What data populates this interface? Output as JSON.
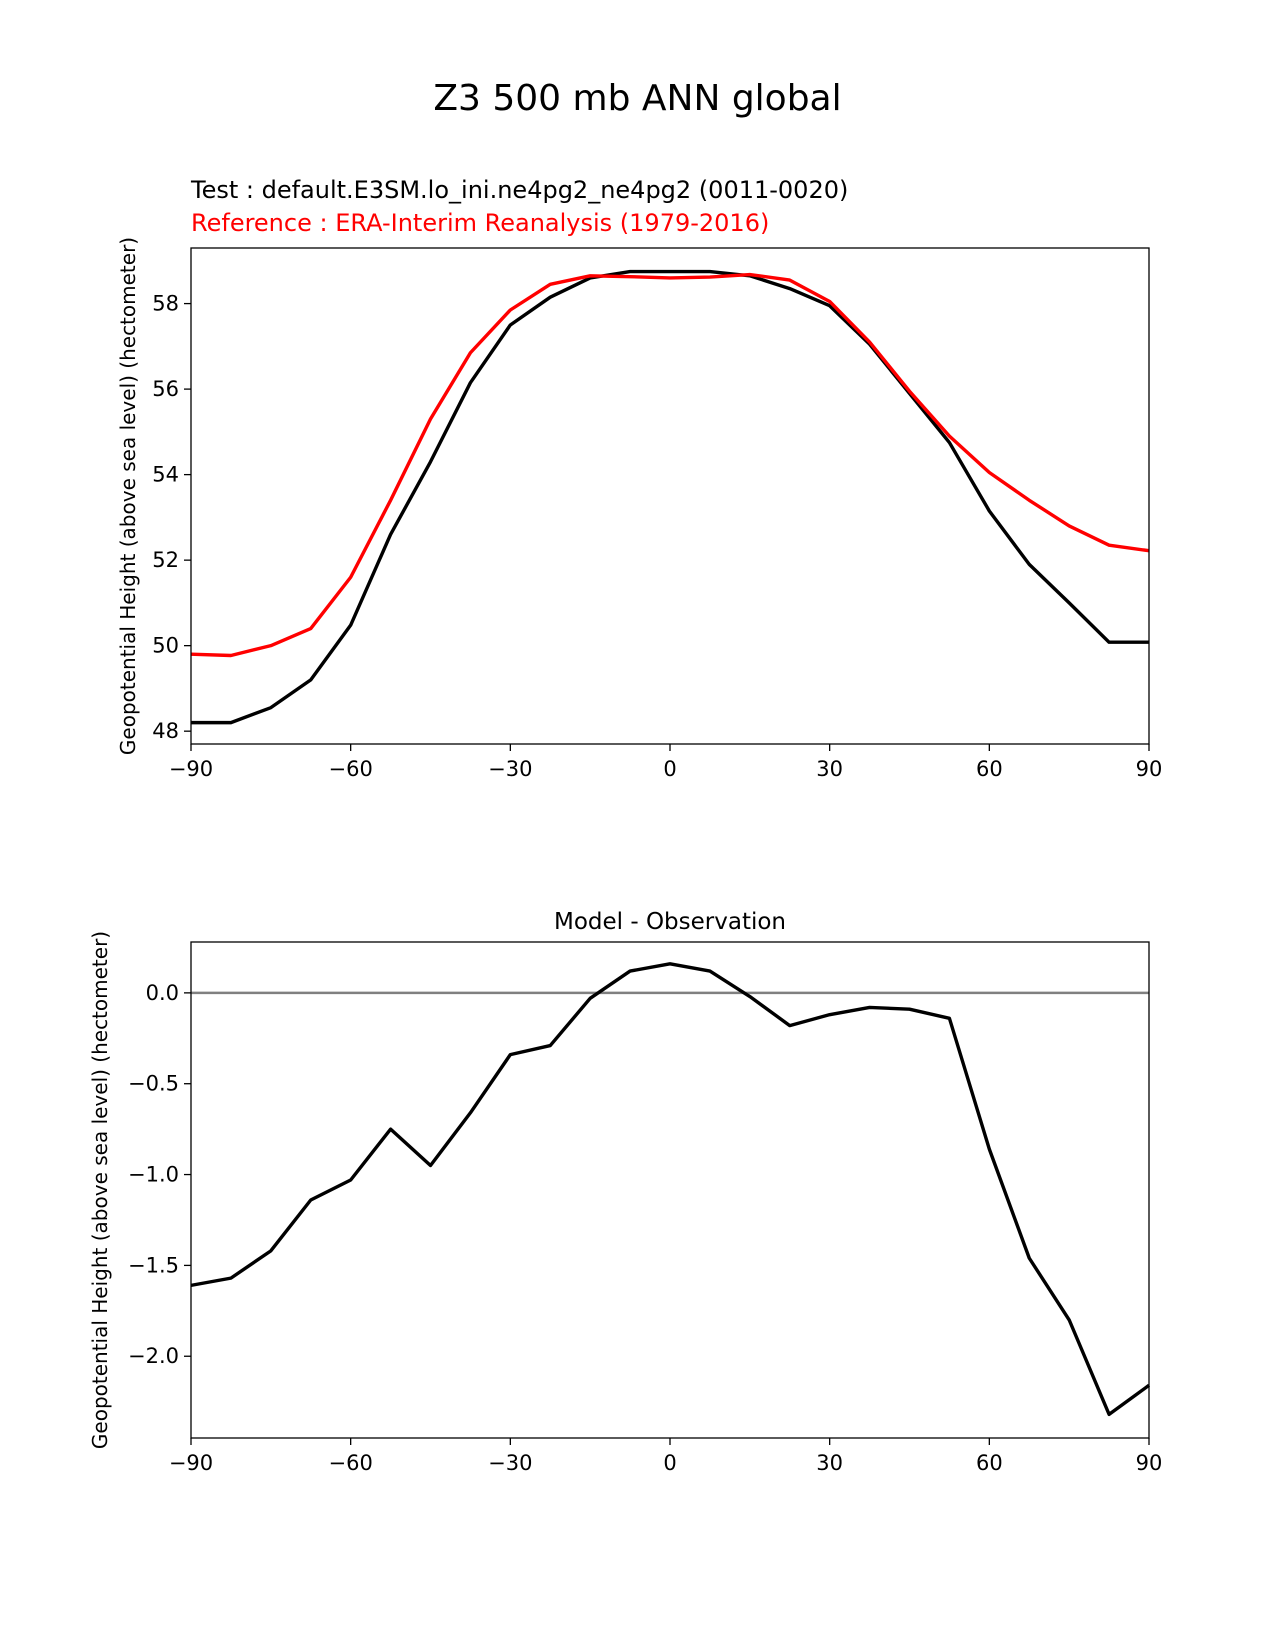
{
  "figure": {
    "suptitle": "Z3 500 mb ANN global"
  },
  "chart_data": [
    {
      "type": "line",
      "title": "",
      "legend_placement": "top-left",
      "legend": {
        "test": "Test : default.E3SM.lo_ini.ne4pg2_ne4pg2 (0011-0020)",
        "reference": "Reference : ERA-Interim Reanalysis (1979-2016)"
      },
      "xlabel": "",
      "ylabel": "Geopotential Height (above sea level) (hectometer)",
      "xlim": [
        -90,
        90
      ],
      "ylim": [
        47.7,
        59.3
      ],
      "xticks": [
        -90,
        -60,
        -30,
        0,
        30,
        60,
        90
      ],
      "xtick_labels": [
        "−90",
        "−60",
        "−30",
        "0",
        "30",
        "60",
        "90"
      ],
      "yticks": [
        48,
        50,
        52,
        54,
        56,
        58
      ],
      "ytick_labels": [
        "48",
        "50",
        "52",
        "54",
        "56",
        "58"
      ],
      "grid": false,
      "series": [
        {
          "name": "Test : default.E3SM.lo_ini.ne4pg2_ne4pg2 (0011-0020)",
          "color": "#000000",
          "x": [
            -90,
            -82.5,
            -75,
            -67.5,
            -60,
            -52.5,
            -45,
            -37.5,
            -30,
            -22.5,
            -15,
            -7.5,
            0,
            7.5,
            15,
            22.5,
            30,
            37.5,
            45,
            52.5,
            60,
            67.5,
            75,
            82.5,
            90
          ],
          "y": [
            48.2,
            48.2,
            48.55,
            49.2,
            50.48,
            52.6,
            54.3,
            56.15,
            57.5,
            58.15,
            58.6,
            58.75,
            58.75,
            58.75,
            58.65,
            58.35,
            57.95,
            57.05,
            55.9,
            54.75,
            53.15,
            51.9,
            51.0,
            50.08,
            50.08
          ]
        },
        {
          "name": "Reference : ERA-Interim Reanalysis (1979-2016)",
          "color": "#ff0000",
          "x": [
            -90,
            -82.5,
            -75,
            -67.5,
            -60,
            -52.5,
            -45,
            -37.5,
            -30,
            -22.5,
            -15,
            -7.5,
            0,
            7.5,
            15,
            22.5,
            30,
            37.5,
            45,
            52.5,
            60,
            67.5,
            75,
            82.5,
            90
          ],
          "y": [
            49.8,
            49.77,
            50.0,
            50.4,
            51.6,
            53.4,
            55.3,
            56.85,
            57.85,
            58.45,
            58.65,
            58.63,
            58.6,
            58.62,
            58.68,
            58.55,
            58.05,
            57.1,
            55.95,
            54.9,
            54.05,
            53.4,
            52.8,
            52.35,
            52.22
          ]
        }
      ]
    },
    {
      "type": "line",
      "title": "Model - Observation",
      "xlabel": "",
      "ylabel": "Geopotential Height (above sea level) (hectometer)",
      "xlim": [
        -90,
        90
      ],
      "ylim": [
        -2.45,
        0.28
      ],
      "xticks": [
        -90,
        -60,
        -30,
        0,
        30,
        60,
        90
      ],
      "xtick_labels": [
        "−90",
        "−60",
        "−30",
        "0",
        "30",
        "60",
        "90"
      ],
      "yticks": [
        0.0,
        -0.5,
        -1.0,
        -1.5,
        -2.0
      ],
      "ytick_labels": [
        "0.0",
        "−0.5",
        "−1.0",
        "−1.5",
        "−2.0"
      ],
      "grid": false,
      "zero_line": {
        "y": 0,
        "color": "#808080"
      },
      "series": [
        {
          "name": "",
          "color": "#000000",
          "x": [
            -90,
            -82.5,
            -75,
            -67.5,
            -60,
            -52.5,
            -45,
            -37.5,
            -30,
            -22.5,
            -15,
            -7.5,
            0,
            7.5,
            15,
            22.5,
            30,
            37.5,
            45,
            52.5,
            60,
            67.5,
            75,
            82.5,
            90
          ],
          "y": [
            -1.61,
            -1.57,
            -1.42,
            -1.14,
            -1.03,
            -0.75,
            -0.95,
            -0.66,
            -0.34,
            -0.29,
            -0.03,
            0.12,
            0.16,
            0.12,
            -0.02,
            -0.18,
            -0.12,
            -0.08,
            -0.09,
            -0.14,
            -0.86,
            -1.46,
            -1.8,
            -2.32,
            -2.16
          ]
        }
      ]
    }
  ]
}
